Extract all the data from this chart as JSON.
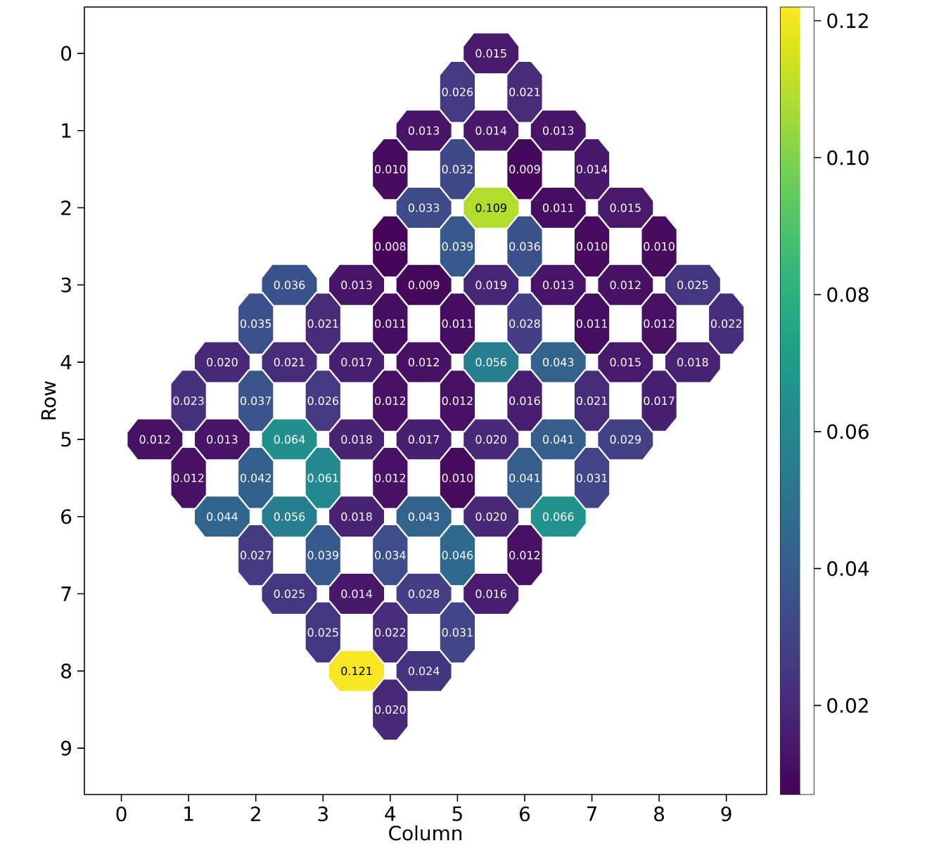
{
  "chart_data": {
    "type": "scatter",
    "xlabel": "Column",
    "ylabel": "Row",
    "x": [
      5.5,
      5,
      6,
      4.5,
      5.5,
      6.5,
      4,
      5,
      6,
      7,
      4.5,
      5.5,
      6.5,
      7.5,
      4,
      5,
      6,
      7,
      8,
      2.5,
      3.5,
      4.5,
      5.5,
      6.5,
      7.5,
      8.5,
      2,
      3,
      4,
      5,
      6,
      7,
      8,
      9,
      1.5,
      2.5,
      3.5,
      4.5,
      5.5,
      6.5,
      7.5,
      8.5,
      1,
      2,
      3,
      4,
      5,
      6,
      7,
      8,
      0.5,
      1.5,
      2.5,
      3.5,
      4.5,
      5.5,
      6.5,
      7.5,
      1,
      2,
      3,
      4,
      5,
      6,
      7,
      1.5,
      2.5,
      3.5,
      4.5,
      5.5,
      6.5,
      2,
      3,
      4,
      5,
      6,
      2.5,
      3.5,
      4.5,
      5.5,
      3,
      4,
      5,
      3.5,
      4.5,
      4
    ],
    "values": [
      0,
      0.5,
      0.5,
      1,
      1,
      1,
      1.5,
      1.5,
      1.5,
      1.5,
      2,
      2,
      2,
      2,
      2.5,
      2.5,
      2.5,
      2.5,
      2.5,
      3,
      3,
      3,
      3,
      3,
      3,
      3,
      3.5,
      3.5,
      3.5,
      3.5,
      3.5,
      3.5,
      3.5,
      3.5,
      4,
      4,
      4,
      4,
      4,
      4,
      4,
      4,
      4.5,
      4.5,
      4.5,
      4.5,
      4.5,
      4.5,
      4.5,
      4.5,
      5,
      5,
      5,
      5,
      5,
      5,
      5,
      5,
      5.5,
      5.5,
      5.5,
      5.5,
      5.5,
      5.5,
      5.5,
      6,
      6,
      6,
      6,
      6,
      6,
      6.5,
      6.5,
      6.5,
      6.5,
      6.5,
      7,
      7,
      7,
      7,
      7.5,
      7.5,
      7.5,
      8,
      8,
      8.5
    ],
    "cvalues": [
      0.015,
      0.026,
      0.021,
      0.013,
      0.014,
      0.013,
      0.01,
      0.032,
      0.009,
      0.014,
      0.033,
      0.109,
      0.011,
      0.015,
      0.008,
      0.039,
      0.036,
      0.01,
      0.01,
      0.036,
      0.013,
      0.009,
      0.019,
      0.013,
      0.012,
      0.025,
      0.035,
      0.021,
      0.011,
      0.011,
      0.028,
      0.011,
      0.012,
      0.022,
      0.02,
      0.021,
      0.017,
      0.012,
      0.056,
      0.043,
      0.015,
      0.018,
      0.023,
      0.037,
      0.026,
      0.012,
      0.012,
      0.016,
      0.021,
      0.017,
      0.012,
      0.013,
      0.064,
      0.018,
      0.017,
      0.02,
      0.041,
      0.029,
      0.012,
      0.042,
      0.061,
      0.012,
      0.01,
      0.041,
      0.031,
      0.044,
      0.056,
      0.018,
      0.043,
      0.02,
      0.066,
      0.027,
      0.039,
      0.034,
      0.046,
      0.012,
      0.025,
      0.014,
      0.028,
      0.016,
      0.025,
      0.022,
      0.031,
      0.121,
      0.024,
      0.02
    ],
    "annotations": [
      {
        "text": "0.015",
        "x": 5.5,
        "y": 0
      },
      {
        "text": "0.026",
        "x": 5,
        "y": 0.5
      },
      {
        "text": "0.021",
        "x": 6,
        "y": 0.5
      },
      {
        "text": "0.013",
        "x": 4.5,
        "y": 1
      },
      {
        "text": "0.014",
        "x": 5.5,
        "y": 1
      },
      {
        "text": "0.013",
        "x": 6.5,
        "y": 1
      },
      {
        "text": "0.010",
        "x": 4,
        "y": 1.5
      },
      {
        "text": "0.032",
        "x": 5,
        "y": 1.5
      },
      {
        "text": "0.009",
        "x": 6,
        "y": 1.5
      },
      {
        "text": "0.014",
        "x": 7,
        "y": 1.5
      },
      {
        "text": "0.033",
        "x": 4.5,
        "y": 2
      },
      {
        "text": "0.109",
        "x": 5.5,
        "y": 2
      },
      {
        "text": "0.011",
        "x": 6.5,
        "y": 2
      },
      {
        "text": "0.015",
        "x": 7.5,
        "y": 2
      },
      {
        "text": "0.008",
        "x": 4,
        "y": 2.5
      },
      {
        "text": "0.039",
        "x": 5,
        "y": 2.5
      },
      {
        "text": "0.036",
        "x": 6,
        "y": 2.5
      },
      {
        "text": "0.010",
        "x": 7,
        "y": 2.5
      },
      {
        "text": "0.010",
        "x": 8,
        "y": 2.5
      },
      {
        "text": "0.036",
        "x": 2.5,
        "y": 3
      },
      {
        "text": "0.013",
        "x": 3.5,
        "y": 3
      },
      {
        "text": "0.009",
        "x": 4.5,
        "y": 3
      },
      {
        "text": "0.019",
        "x": 5.5,
        "y": 3
      },
      {
        "text": "0.013",
        "x": 6.5,
        "y": 3
      },
      {
        "text": "0.012",
        "x": 7.5,
        "y": 3
      },
      {
        "text": "0.025",
        "x": 8.5,
        "y": 3
      },
      {
        "text": "0.035",
        "x": 2,
        "y": 3.5
      },
      {
        "text": "0.021",
        "x": 3,
        "y": 3.5
      },
      {
        "text": "0.011",
        "x": 4,
        "y": 3.5
      },
      {
        "text": "0.011",
        "x": 5,
        "y": 3.5
      },
      {
        "text": "0.028",
        "x": 6,
        "y": 3.5
      },
      {
        "text": "0.011",
        "x": 7,
        "y": 3.5
      },
      {
        "text": "0.012",
        "x": 8,
        "y": 3.5
      },
      {
        "text": "0.022",
        "x": 9,
        "y": 3.5
      },
      {
        "text": "0.020",
        "x": 1.5,
        "y": 4
      },
      {
        "text": "0.021",
        "x": 2.5,
        "y": 4
      },
      {
        "text": "0.017",
        "x": 3.5,
        "y": 4
      },
      {
        "text": "0.012",
        "x": 4.5,
        "y": 4
      },
      {
        "text": "0.056",
        "x": 5.5,
        "y": 4
      },
      {
        "text": "0.043",
        "x": 6.5,
        "y": 4
      },
      {
        "text": "0.015",
        "x": 7.5,
        "y": 4
      },
      {
        "text": "0.018",
        "x": 8.5,
        "y": 4
      },
      {
        "text": "0.023",
        "x": 1,
        "y": 4.5
      },
      {
        "text": "0.037",
        "x": 2,
        "y": 4.5
      },
      {
        "text": "0.026",
        "x": 3,
        "y": 4.5
      },
      {
        "text": "0.012",
        "x": 4,
        "y": 4.5
      },
      {
        "text": "0.012",
        "x": 5,
        "y": 4.5
      },
      {
        "text": "0.016",
        "x": 6,
        "y": 4.5
      },
      {
        "text": "0.021",
        "x": 7,
        "y": 4.5
      },
      {
        "text": "0.017",
        "x": 8,
        "y": 4.5
      },
      {
        "text": "0.012",
        "x": 0.5,
        "y": 5
      },
      {
        "text": "0.013",
        "x": 1.5,
        "y": 5
      },
      {
        "text": "0.064",
        "x": 2.5,
        "y": 5
      },
      {
        "text": "0.018",
        "x": 3.5,
        "y": 5
      },
      {
        "text": "0.017",
        "x": 4.5,
        "y": 5
      },
      {
        "text": "0.020",
        "x": 5.5,
        "y": 5
      },
      {
        "text": "0.041",
        "x": 6.5,
        "y": 5
      },
      {
        "text": "0.029",
        "x": 7.5,
        "y": 5
      },
      {
        "text": "0.012",
        "x": 1,
        "y": 5.5
      },
      {
        "text": "0.042",
        "x": 2,
        "y": 5.5
      },
      {
        "text": "0.061",
        "x": 3,
        "y": 5.5
      },
      {
        "text": "0.012",
        "x": 4,
        "y": 5.5
      },
      {
        "text": "0.010",
        "x": 5,
        "y": 5.5
      },
      {
        "text": "0.041",
        "x": 6,
        "y": 5.5
      },
      {
        "text": "0.031",
        "x": 7,
        "y": 5.5
      },
      {
        "text": "0.044",
        "x": 1.5,
        "y": 6
      },
      {
        "text": "0.056",
        "x": 2.5,
        "y": 6
      },
      {
        "text": "0.018",
        "x": 3.5,
        "y": 6
      },
      {
        "text": "0.043",
        "x": 4.5,
        "y": 6
      },
      {
        "text": "0.020",
        "x": 5.5,
        "y": 6
      },
      {
        "text": "0.066",
        "x": 6.5,
        "y": 6
      },
      {
        "text": "0.027",
        "x": 2,
        "y": 6.5
      },
      {
        "text": "0.039",
        "x": 3,
        "y": 6.5
      },
      {
        "text": "0.034",
        "x": 4,
        "y": 6.5
      },
      {
        "text": "0.046",
        "x": 5,
        "y": 6.5
      },
      {
        "text": "0.012",
        "x": 6,
        "y": 6.5
      },
      {
        "text": "0.025",
        "x": 2.5,
        "y": 7
      },
      {
        "text": "0.014",
        "x": 3.5,
        "y": 7
      },
      {
        "text": "0.028",
        "x": 4.5,
        "y": 7
      },
      {
        "text": "0.016",
        "x": 5.5,
        "y": 7
      },
      {
        "text": "0.025",
        "x": 3,
        "y": 7.5
      },
      {
        "text": "0.022",
        "x": 4,
        "y": 7.5
      },
      {
        "text": "0.031",
        "x": 5,
        "y": 7.5
      },
      {
        "text": "0.121",
        "x": 3.5,
        "y": 8
      },
      {
        "text": "0.024",
        "x": 4.5,
        "y": 8
      },
      {
        "text": "0.020",
        "x": 4,
        "y": 8.5
      }
    ],
    "xlim": [
      -0.55,
      9.6
    ],
    "ylim": [
      9.6,
      -0.6
    ],
    "xticks": [
      0,
      1,
      2,
      3,
      4,
      5,
      6,
      7,
      8,
      9
    ],
    "yticks": [
      0,
      1,
      2,
      3,
      4,
      5,
      6,
      7,
      8,
      9
    ],
    "clim": [
      0.007,
      0.122
    ],
    "cticks": [
      {
        "value": 0.02,
        "label": "0.02"
      },
      {
        "value": 0.04,
        "label": "0.04"
      },
      {
        "value": 0.06,
        "label": "0.06"
      },
      {
        "value": 0.08,
        "label": "0.08"
      },
      {
        "value": 0.1,
        "label": "0.10"
      },
      {
        "value": 0.12,
        "label": "0.12"
      }
    ]
  }
}
